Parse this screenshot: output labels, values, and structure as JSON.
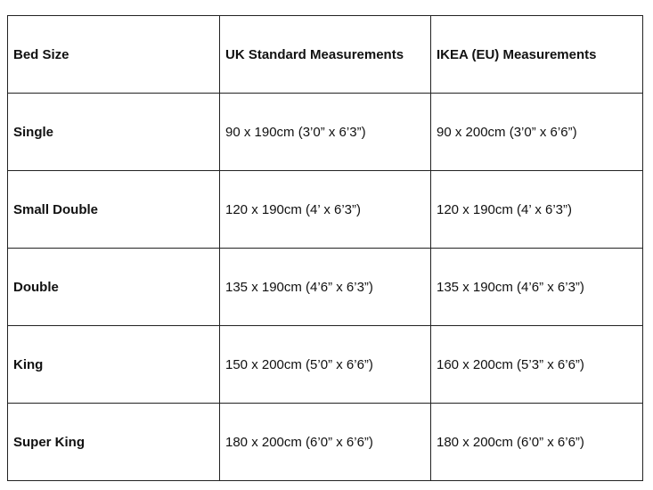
{
  "table": {
    "headers": [
      "Bed Size",
      "UK Standard Measurements",
      "IKEA (EU) Measurements"
    ],
    "rows": [
      [
        "Single",
        "90 x 190cm (3’0” x 6’3”)",
        "90 x 200cm (3’0” x 6’6”)"
      ],
      [
        "Small Double",
        "120 x 190cm (4’ x 6’3”)",
        "120 x 190cm (4’ x 6’3”)"
      ],
      [
        "Double",
        "135 x 190cm (4’6” x 6’3”)",
        "135 x 190cm (4’6” x 6’3”)"
      ],
      [
        "King",
        "150 x 200cm (5’0” x 6’6”)",
        "160 x 200cm (5’3” x 6’6”)"
      ],
      [
        "Super King",
        "180 x 200cm (6’0” x 6’6”)",
        "180 x 200cm (6’0” x 6’6”)"
      ]
    ]
  }
}
